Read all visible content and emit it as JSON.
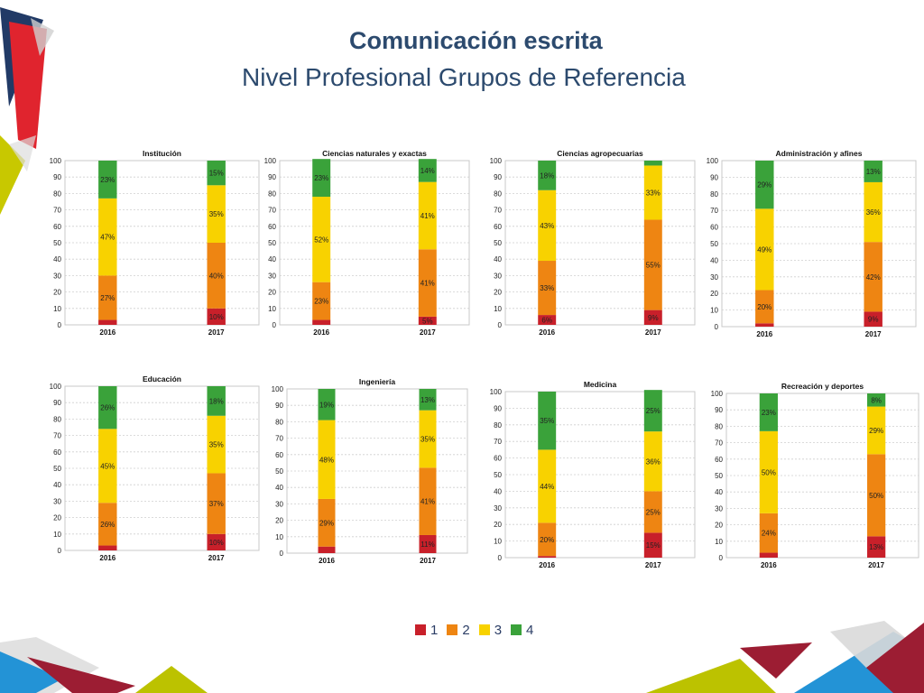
{
  "header": {
    "title": "Comunicación escrita",
    "subtitle": "Nivel Profesional Grupos de Referencia"
  },
  "colors": {
    "level_1": "#c8202a",
    "level_2": "#ee8512",
    "level_3": "#f8d200",
    "level_4": "#3aa23a"
  },
  "legend": [
    {
      "label": "1",
      "color": "#c8202a"
    },
    {
      "label": "2",
      "color": "#ee8512"
    },
    {
      "label": "3",
      "color": "#f8d200"
    },
    {
      "label": "4",
      "color": "#3aa23a"
    }
  ],
  "chart_data": [
    {
      "type": "bar",
      "stacked": true,
      "title": "Institución",
      "categories": [
        "2016",
        "2017"
      ],
      "ylim": [
        0,
        100
      ],
      "yticks": [
        0,
        10,
        20,
        30,
        40,
        50,
        60,
        70,
        80,
        90,
        100
      ],
      "series": [
        {
          "name": "1",
          "values": [
            3,
            10
          ],
          "labels": [
            "",
            "10%"
          ]
        },
        {
          "name": "2",
          "values": [
            27,
            40
          ],
          "labels": [
            "27%",
            "40%"
          ]
        },
        {
          "name": "3",
          "values": [
            47,
            35
          ],
          "labels": [
            "47%",
            "35%"
          ]
        },
        {
          "name": "4",
          "values": [
            23,
            15
          ],
          "labels": [
            "23%",
            "15%"
          ]
        }
      ]
    },
    {
      "type": "bar",
      "stacked": true,
      "title": "Ciencias naturales y exactas",
      "categories": [
        "2016",
        "2017"
      ],
      "ylim": [
        0,
        100
      ],
      "yticks": [
        0,
        10,
        20,
        30,
        40,
        50,
        60,
        70,
        80,
        90,
        100
      ],
      "series": [
        {
          "name": "1",
          "values": [
            3,
            5
          ],
          "labels": [
            "",
            "5%"
          ]
        },
        {
          "name": "2",
          "values": [
            23,
            41
          ],
          "labels": [
            "23%",
            "41%"
          ]
        },
        {
          "name": "3",
          "values": [
            52,
            41
          ],
          "labels": [
            "52%",
            "41%"
          ]
        },
        {
          "name": "4",
          "values": [
            23,
            14
          ],
          "labels": [
            "23%",
            "14%"
          ]
        }
      ]
    },
    {
      "type": "bar",
      "stacked": true,
      "title": "Ciencias agropecuarias",
      "categories": [
        "2016",
        "2017"
      ],
      "ylim": [
        0,
        100
      ],
      "yticks": [
        0,
        10,
        20,
        30,
        40,
        50,
        60,
        70,
        80,
        90,
        100
      ],
      "series": [
        {
          "name": "1",
          "values": [
            6,
            9
          ],
          "labels": [
            "6%",
            "9%"
          ]
        },
        {
          "name": "2",
          "values": [
            33,
            55
          ],
          "labels": [
            "33%",
            "55%"
          ]
        },
        {
          "name": "3",
          "values": [
            43,
            33
          ],
          "labels": [
            "43%",
            "33%"
          ]
        },
        {
          "name": "4",
          "values": [
            18,
            3
          ],
          "labels": [
            "18%",
            ""
          ]
        }
      ]
    },
    {
      "type": "bar",
      "stacked": true,
      "title": "Administración y afines",
      "categories": [
        "2016",
        "2017"
      ],
      "ylim": [
        0,
        100
      ],
      "yticks": [
        0,
        10,
        20,
        30,
        40,
        50,
        60,
        70,
        80,
        90,
        100
      ],
      "series": [
        {
          "name": "1",
          "values": [
            2,
            9
          ],
          "labels": [
            "",
            "9%"
          ]
        },
        {
          "name": "2",
          "values": [
            20,
            42
          ],
          "labels": [
            "20%",
            "42%"
          ]
        },
        {
          "name": "3",
          "values": [
            49,
            36
          ],
          "labels": [
            "49%",
            "36%"
          ]
        },
        {
          "name": "4",
          "values": [
            29,
            13
          ],
          "labels": [
            "29%",
            "13%"
          ]
        }
      ]
    },
    {
      "type": "bar",
      "stacked": true,
      "title": "Educación",
      "categories": [
        "2016",
        "2017"
      ],
      "ylim": [
        0,
        100
      ],
      "yticks": [
        0,
        10,
        20,
        30,
        40,
        50,
        60,
        70,
        80,
        90,
        100
      ],
      "series": [
        {
          "name": "1",
          "values": [
            3,
            10
          ],
          "labels": [
            "",
            "10%"
          ]
        },
        {
          "name": "2",
          "values": [
            26,
            37
          ],
          "labels": [
            "26%",
            "37%"
          ]
        },
        {
          "name": "3",
          "values": [
            45,
            35
          ],
          "labels": [
            "45%",
            "35%"
          ]
        },
        {
          "name": "4",
          "values": [
            26,
            18
          ],
          "labels": [
            "26%",
            "18%"
          ]
        }
      ]
    },
    {
      "type": "bar",
      "stacked": true,
      "title": "Ingeniería",
      "categories": [
        "2016",
        "2017"
      ],
      "ylim": [
        0,
        100
      ],
      "yticks": [
        0,
        10,
        20,
        30,
        40,
        50,
        60,
        70,
        80,
        90,
        100
      ],
      "series": [
        {
          "name": "1",
          "values": [
            4,
            11
          ],
          "labels": [
            "",
            "11%"
          ]
        },
        {
          "name": "2",
          "values": [
            29,
            41
          ],
          "labels": [
            "29%",
            "41%"
          ]
        },
        {
          "name": "3",
          "values": [
            48,
            35
          ],
          "labels": [
            "48%",
            "35%"
          ]
        },
        {
          "name": "4",
          "values": [
            19,
            13
          ],
          "labels": [
            "19%",
            "13%"
          ]
        }
      ]
    },
    {
      "type": "bar",
      "stacked": true,
      "title": "Medicina",
      "categories": [
        "2016",
        "2017"
      ],
      "ylim": [
        0,
        100
      ],
      "yticks": [
        0,
        10,
        20,
        30,
        40,
        50,
        60,
        70,
        80,
        90,
        100
      ],
      "series": [
        {
          "name": "1",
          "values": [
            1,
            15
          ],
          "labels": [
            "",
            "15%"
          ]
        },
        {
          "name": "2",
          "values": [
            20,
            25
          ],
          "labels": [
            "20%",
            "25%"
          ]
        },
        {
          "name": "3",
          "values": [
            44,
            36
          ],
          "labels": [
            "44%",
            "36%"
          ]
        },
        {
          "name": "4",
          "values": [
            35,
            25
          ],
          "labels": [
            "35%",
            "25%"
          ]
        }
      ]
    },
    {
      "type": "bar",
      "stacked": true,
      "title": "Recreación y deportes",
      "categories": [
        "2016",
        "2017"
      ],
      "ylim": [
        0,
        100
      ],
      "yticks": [
        0,
        10,
        20,
        30,
        40,
        50,
        60,
        70,
        80,
        90,
        100
      ],
      "series": [
        {
          "name": "1",
          "values": [
            3,
            13
          ],
          "labels": [
            "",
            "13%"
          ]
        },
        {
          "name": "2",
          "values": [
            24,
            50
          ],
          "labels": [
            "24%",
            "50%"
          ]
        },
        {
          "name": "3",
          "values": [
            50,
            29
          ],
          "labels": [
            "50%",
            "29%"
          ]
        },
        {
          "name": "4",
          "values": [
            23,
            8
          ],
          "labels": [
            "23%",
            "8%"
          ]
        }
      ]
    }
  ]
}
